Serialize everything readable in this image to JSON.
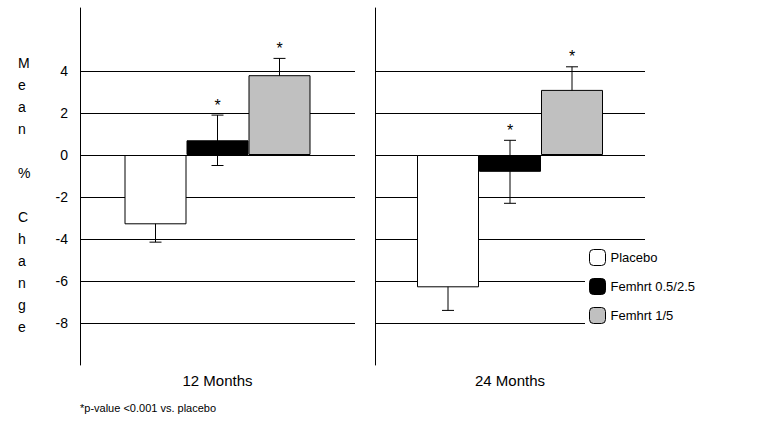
{
  "chart_data": {
    "type": "bar",
    "y_label": "Mean % Change",
    "categories": [
      "12 Months",
      "24 Months"
    ],
    "series": [
      {
        "name": "Placebo",
        "color": "#ffffff",
        "values": [
          -3.3,
          -6.3
        ],
        "errors": [
          0.85,
          1.1
        ]
      },
      {
        "name": "Femhrt 0.5/2.5",
        "color": "#000000",
        "values": [
          0.7,
          -0.8
        ],
        "errors": [
          1.2,
          1.5
        ],
        "significance": [
          "*",
          "*"
        ]
      },
      {
        "name": "Femhrt 1/5",
        "color": "#c0c0c0",
        "values": [
          3.8,
          3.1
        ],
        "errors": [
          0.8,
          1.1
        ],
        "significance": [
          "*",
          "*"
        ]
      }
    ],
    "ylim": [
      -10,
      7
    ],
    "yticks": [
      -8,
      -6,
      -4,
      -2,
      0,
      2,
      4
    ],
    "grid": true,
    "legend": "lower right",
    "annotations": [
      "*p-value <0.001 vs. placebo"
    ]
  }
}
